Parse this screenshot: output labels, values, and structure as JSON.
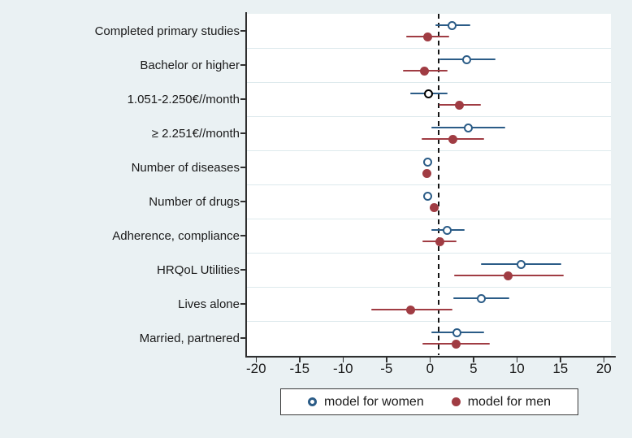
{
  "figure": {
    "background_color": "#eaf1f3",
    "plot_background_color": "#ffffff",
    "separator_color": "#dde9ed"
  },
  "legend": {
    "items": [
      {
        "label": "model for women",
        "marker": "open-circle",
        "color": "#2b5c87"
      },
      {
        "label": "model for men",
        "marker": "filled-circle",
        "color": "#a03c43"
      }
    ]
  },
  "chart_data": {
    "type": "scatter",
    "subtype": "forest-plot-with-ci",
    "title": "",
    "xlabel": "",
    "ylabel": "",
    "x_ticks": [
      -20,
      -15,
      -10,
      -5,
      0,
      5,
      10,
      15,
      20
    ],
    "xlim": [
      -21.2,
      21.0
    ],
    "reference_line_x": 1,
    "reference_line_style": "dashed-black",
    "grid": "category-separators",
    "legend_position": "bottom",
    "categories": [
      "Completed primary studies",
      "Bachelor or higher",
      "1.051-2.250€//month",
      "≥ 2.251€//month",
      "Number of diseases",
      "Number of drugs",
      "Adherence, compliance",
      "HRQoL Utilities",
      "Lives alone",
      "Married, partnered"
    ],
    "series": [
      {
        "name": "model for women",
        "marker": "open-circle",
        "color": "#2b5c87",
        "points": [
          {
            "est": 2.5,
            "lo": 0.6,
            "hi": 4.6
          },
          {
            "est": 4.2,
            "lo": 1.1,
            "hi": 7.5
          },
          {
            "est": -0.2,
            "lo": -2.3,
            "hi": 2.0,
            "marker_color": "#000000"
          },
          {
            "est": 4.4,
            "lo": 0.2,
            "hi": 8.7
          },
          {
            "est": -0.3,
            "lo": -0.6,
            "hi": 0.0
          },
          {
            "est": -0.3,
            "lo": -0.6,
            "hi": 0.0
          },
          {
            "est": 2.0,
            "lo": 0.2,
            "hi": 4.0
          },
          {
            "est": 10.5,
            "lo": 5.9,
            "hi": 15.1
          },
          {
            "est": 5.9,
            "lo": 2.7,
            "hi": 9.1
          },
          {
            "est": 3.1,
            "lo": 0.2,
            "hi": 6.2
          }
        ]
      },
      {
        "name": "model for men",
        "marker": "filled-circle",
        "color": "#a03c43",
        "points": [
          {
            "est": -0.3,
            "lo": -2.7,
            "hi": 2.2
          },
          {
            "est": -0.6,
            "lo": -3.1,
            "hi": 2.0
          },
          {
            "est": 3.4,
            "lo": 1.0,
            "hi": 5.9
          },
          {
            "est": 2.6,
            "lo": -1.0,
            "hi": 6.2
          },
          {
            "est": -0.4,
            "lo": -0.7,
            "hi": -0.1
          },
          {
            "est": 0.5,
            "lo": 0.2,
            "hi": 0.8
          },
          {
            "est": 1.1,
            "lo": -0.9,
            "hi": 3.1
          },
          {
            "est": 9.0,
            "lo": 2.8,
            "hi": 15.4
          },
          {
            "est": -2.2,
            "lo": -6.8,
            "hi": 2.6
          },
          {
            "est": 3.0,
            "lo": -0.9,
            "hi": 6.9
          }
        ]
      }
    ]
  }
}
